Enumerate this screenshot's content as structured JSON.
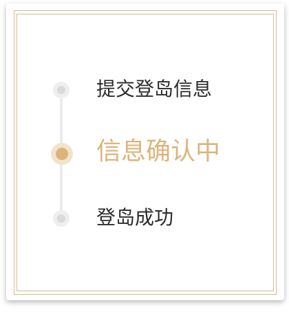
{
  "steps": [
    {
      "label": "提交登岛信息",
      "state": "done"
    },
    {
      "label": "信息确认中",
      "state": "active"
    },
    {
      "label": "登岛成功",
      "state": "pending"
    }
  ],
  "colors": {
    "accent": "#dcb47a",
    "frame": "#d8b98a",
    "text": "#2b2b2b",
    "rail": "#ebebeb"
  }
}
